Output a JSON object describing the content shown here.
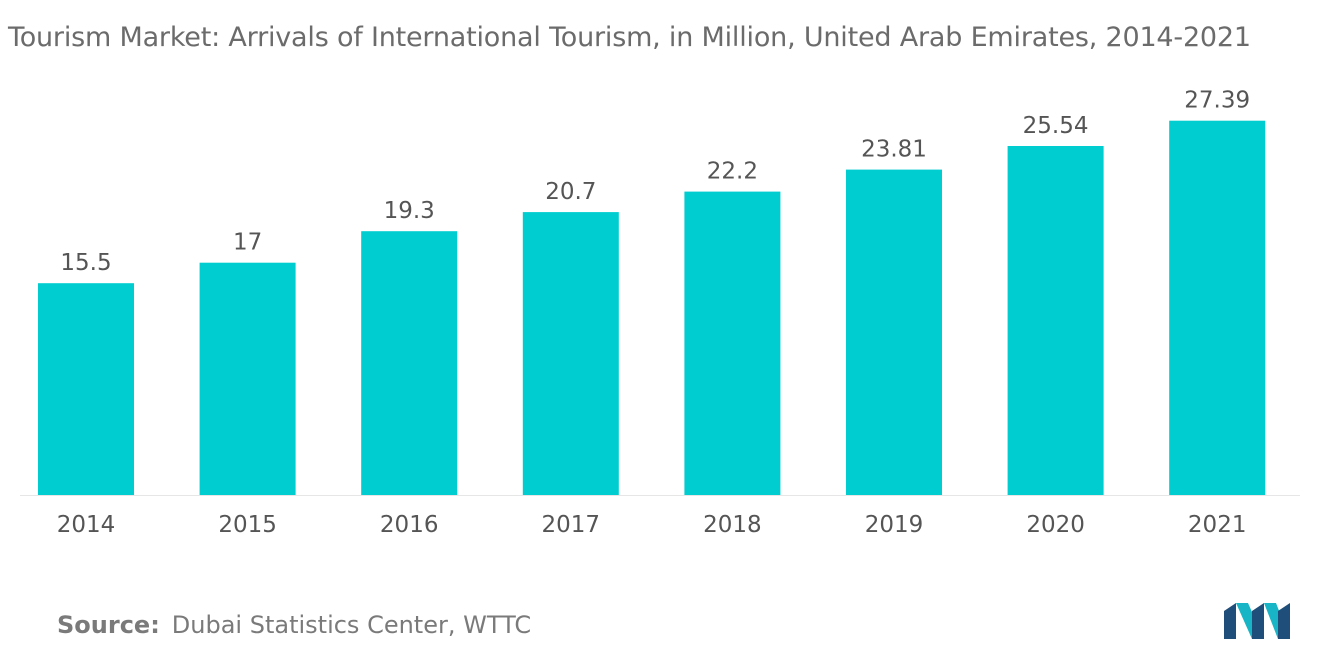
{
  "title": "Tourism Market: Arrivals of International Tourism, in Million, United Arab Emirates, 2014-2021",
  "source": {
    "label": "Source:",
    "text": "Dubai Statistics Center, WTTC"
  },
  "logo": {
    "icon": "mordor-intelligence-logo-icon",
    "colors": [
      "#1e4e79",
      "#17b5c6"
    ]
  },
  "colors": {
    "bar": "#00cdd0",
    "label_text": "#555555",
    "axis_line": "#e6e6e6"
  },
  "chart_data": {
    "type": "bar",
    "categories": [
      "2014",
      "2015",
      "2016",
      "2017",
      "2018",
      "2019",
      "2020",
      "2021"
    ],
    "values": [
      15.5,
      17,
      19.3,
      20.7,
      22.2,
      23.81,
      25.54,
      27.39
    ],
    "value_labels": [
      "15.5",
      "17",
      "19.3",
      "20.7",
      "22.2",
      "23.81",
      "25.54",
      "27.39"
    ],
    "title": "Tourism Market: Arrivals of International Tourism, in Million, United Arab Emirates, 2014-2021",
    "xlabel": "",
    "ylabel": "",
    "ylim": [
      0,
      30
    ],
    "grid": false,
    "legend": "none"
  }
}
